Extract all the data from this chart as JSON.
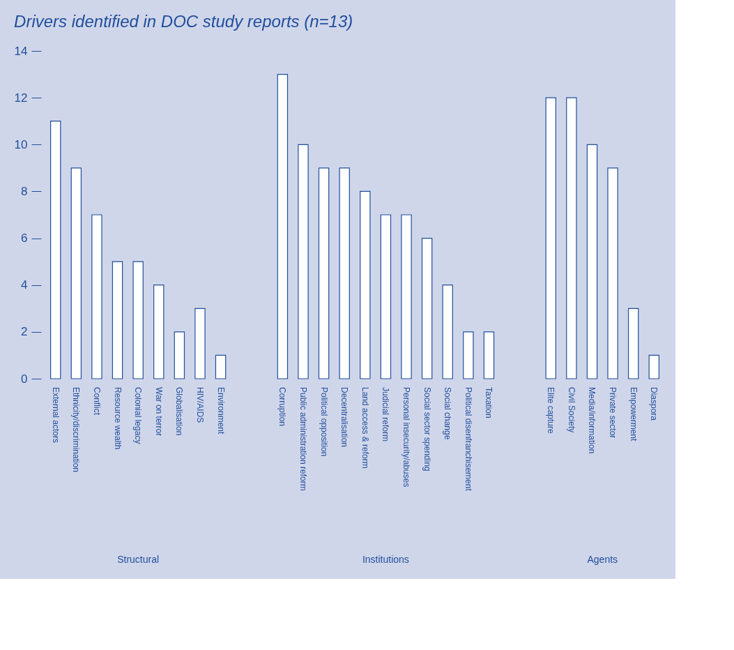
{
  "chart_data": {
    "type": "bar",
    "title": "Drivers identified in DOC study reports (n=13)",
    "categories": [
      "External actors",
      "Ethnicity/discrimination",
      "Conflict",
      "Resource wealth",
      "Colonial legacy",
      "War on terror",
      "Globalisation",
      "HIV/AIDS",
      "Environment",
      null,
      null,
      "Corruption",
      "Public administration reform",
      "Political opposition",
      "Decentralisation",
      "Land access & reform",
      "Judicial reform",
      "Personal insecurity/abuses",
      "Social sector spending",
      "Social change",
      "Political disenfranchisement",
      "Taxation",
      null,
      null,
      "Elite capture",
      "Civil Society",
      "Media/information",
      "Private sector",
      "Empowerment",
      "Diaspora"
    ],
    "values": [
      11,
      9,
      7,
      5,
      5,
      4,
      2,
      3,
      1,
      null,
      null,
      13,
      10,
      9,
      9,
      8,
      7,
      7,
      6,
      4,
      2,
      2,
      null,
      null,
      12,
      12,
      10,
      9,
      3,
      1
    ],
    "color": "#1f4e9c",
    "ylim": [
      0,
      14
    ],
    "yticks": [
      0,
      2,
      4,
      6,
      8,
      10,
      12,
      14
    ],
    "annotations": [
      "Structural",
      "Institutions",
      "Agents"
    ],
    "grid": false
  }
}
